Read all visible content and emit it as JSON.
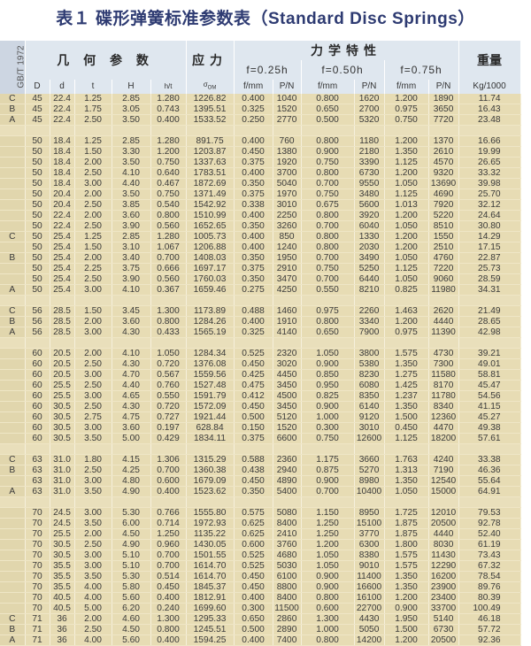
{
  "title": "表１ 碟形弹簧标准参数表（Standard Disc Springs）",
  "header": {
    "standard": "GB/T 1972",
    "geometry": "几 何 参 数",
    "stress": "应力",
    "mechanics": "力学特性",
    "weight": "重量",
    "f025": "f=0.25h",
    "f050": "f=0.50h",
    "f075": "f=0.75h",
    "columns": {
      "D": "D",
      "d": "d",
      "t": "t",
      "H": "H",
      "ht": "h/t",
      "sigma": "σ",
      "sigma_sub": "OM",
      "f1": "f/mm",
      "p1": "P/N",
      "f2": "f/mm",
      "p2": "P/N",
      "f3": "f/mm",
      "p3": "P/N",
      "kg": "Kg/1000"
    }
  },
  "colors": {
    "title": "#2e3b72",
    "header_bg": "#dfe7ef",
    "row_bg": "#e7dcb4"
  },
  "groups": [
    [
      [
        "C",
        "45",
        "22.4",
        "1.25",
        "2.85",
        "1.280",
        "1226.82",
        "0.400",
        "1040",
        "0.800",
        "1620",
        "1.200",
        "1890",
        "11.74"
      ],
      [
        "B",
        "45",
        "22.4",
        "1.75",
        "3.05",
        "0.743",
        "1395.51",
        "0.325",
        "1520",
        "0.650",
        "2700",
        "0.975",
        "3650",
        "16.43"
      ],
      [
        "A",
        "45",
        "22.4",
        "2.50",
        "3.50",
        "0.400",
        "1533.52",
        "0.250",
        "2770",
        "0.500",
        "5320",
        "0.750",
        "7720",
        "23.48"
      ]
    ],
    [
      [
        "",
        "50",
        "18.4",
        "1.25",
        "2.85",
        "1.280",
        "891.75",
        "0.400",
        "760",
        "0.800",
        "1180",
        "1.200",
        "1370",
        "16.66"
      ],
      [
        "",
        "50",
        "18.4",
        "1.50",
        "3.30",
        "1.200",
        "1203.87",
        "0.450",
        "1380",
        "0.900",
        "2180",
        "1.350",
        "2610",
        "19.99"
      ],
      [
        "",
        "50",
        "18.4",
        "2.00",
        "3.50",
        "0.750",
        "1337.63",
        "0.375",
        "1920",
        "0.750",
        "3390",
        "1.125",
        "4570",
        "26.65"
      ],
      [
        "",
        "50",
        "18.4",
        "2.50",
        "4.10",
        "0.640",
        "1783.51",
        "0.400",
        "3700",
        "0.800",
        "6730",
        "1.200",
        "9320",
        "33.32"
      ],
      [
        "",
        "50",
        "18.4",
        "3.00",
        "4.40",
        "0.467",
        "1872.69",
        "0.350",
        "5040",
        "0.700",
        "9550",
        "1.050",
        "13690",
        "39.98"
      ],
      [
        "",
        "50",
        "20.4",
        "2.00",
        "3.50",
        "0.750",
        "1371.49",
        "0.375",
        "1970",
        "0.750",
        "3480",
        "1.125",
        "4690",
        "25.70"
      ],
      [
        "",
        "50",
        "20.4",
        "2.50",
        "3.85",
        "0.540",
        "1542.92",
        "0.338",
        "3010",
        "0.675",
        "5600",
        "1.013",
        "7920",
        "32.12"
      ],
      [
        "",
        "50",
        "22.4",
        "2.00",
        "3.60",
        "0.800",
        "1510.99",
        "0.400",
        "2250",
        "0.800",
        "3920",
        "1.200",
        "5220",
        "24.64"
      ],
      [
        "",
        "50",
        "22.4",
        "2.50",
        "3.90",
        "0.560",
        "1652.65",
        "0.350",
        "3260",
        "0.700",
        "6040",
        "1.050",
        "8510",
        "30.80"
      ],
      [
        "C",
        "50",
        "25.4",
        "1.25",
        "2.85",
        "1.280",
        "1005.73",
        "0.400",
        "850",
        "0.800",
        "1330",
        "1.200",
        "1550",
        "14.29"
      ],
      [
        "",
        "50",
        "25.4",
        "1.50",
        "3.10",
        "1.067",
        "1206.88",
        "0.400",
        "1240",
        "0.800",
        "2030",
        "1.200",
        "2510",
        "17.15"
      ],
      [
        "B",
        "50",
        "25.4",
        "2.00",
        "3.40",
        "0.700",
        "1408.03",
        "0.350",
        "1950",
        "0.700",
        "3490",
        "1.050",
        "4760",
        "22.87"
      ],
      [
        "",
        "50",
        "25.4",
        "2.25",
        "3.75",
        "0.666",
        "1697.17",
        "0.375",
        "2910",
        "0.750",
        "5250",
        "1.125",
        "7220",
        "25.73"
      ],
      [
        "",
        "50",
        "25.4",
        "2.50",
        "3.90",
        "0.560",
        "1760.03",
        "0.350",
        "3470",
        "0.700",
        "6440",
        "1.050",
        "9060",
        "28.59"
      ],
      [
        "A",
        "50",
        "25.4",
        "3.00",
        "4.10",
        "0.367",
        "1659.46",
        "0.275",
        "4250",
        "0.550",
        "8210",
        "0.825",
        "11980",
        "34.31"
      ]
    ],
    [
      [
        "C",
        "56",
        "28.5",
        "1.50",
        "3.45",
        "1.300",
        "1173.89",
        "0.488",
        "1460",
        "0.975",
        "2260",
        "1.463",
        "2620",
        "21.49"
      ],
      [
        "B",
        "56",
        "28.5",
        "2.00",
        "3.60",
        "0.800",
        "1284.26",
        "0.400",
        "1910",
        "0.800",
        "3340",
        "1.200",
        "4440",
        "28.65"
      ],
      [
        "A",
        "56",
        "28.5",
        "3.00",
        "4.30",
        "0.433",
        "1565.19",
        "0.325",
        "4140",
        "0.650",
        "7900",
        "0.975",
        "11390",
        "42.98"
      ]
    ],
    [
      [
        "",
        "60",
        "20.5",
        "2.00",
        "4.10",
        "1.050",
        "1284.34",
        "0.525",
        "2320",
        "1.050",
        "3800",
        "1.575",
        "4730",
        "39.21"
      ],
      [
        "",
        "60",
        "20.5",
        "2.50",
        "4.30",
        "0.720",
        "1376.08",
        "0.450",
        "3020",
        "0.900",
        "5380",
        "1.350",
        "7300",
        "49.01"
      ],
      [
        "",
        "60",
        "20.5",
        "3.00",
        "4.70",
        "0.567",
        "1559.56",
        "0.425",
        "4450",
        "0.850",
        "8230",
        "1.275",
        "11580",
        "58.81"
      ],
      [
        "",
        "60",
        "25.5",
        "2.50",
        "4.40",
        "0.760",
        "1527.48",
        "0.475",
        "3450",
        "0.950",
        "6080",
        "1.425",
        "8170",
        "45.47"
      ],
      [
        "",
        "60",
        "25.5",
        "3.00",
        "4.65",
        "0.550",
        "1591.79",
        "0.412",
        "4500",
        "0.825",
        "8350",
        "1.237",
        "11780",
        "54.56"
      ],
      [
        "",
        "60",
        "30.5",
        "2.50",
        "4.30",
        "0.720",
        "1572.09",
        "0.450",
        "3450",
        "0.900",
        "6140",
        "1.350",
        "8340",
        "41.15"
      ],
      [
        "",
        "60",
        "30.5",
        "2.75",
        "4.75",
        "0.727",
        "1921.44",
        "0.500",
        "5120",
        "1.000",
        "9120",
        "1.500",
        "12360",
        "45.27"
      ],
      [
        "",
        "60",
        "30.5",
        "3.00",
        "3.60",
        "0.197",
        "628.84",
        "0.150",
        "1520",
        "0.300",
        "3010",
        "0.450",
        "4470",
        "49.38"
      ],
      [
        "",
        "60",
        "30.5",
        "3.50",
        "5.00",
        "0.429",
        "1834.11",
        "0.375",
        "6600",
        "0.750",
        "12600",
        "1.125",
        "18200",
        "57.61"
      ]
    ],
    [
      [
        "C",
        "63",
        "31.0",
        "1.80",
        "4.15",
        "1.306",
        "1315.29",
        "0.588",
        "2360",
        "1.175",
        "3660",
        "1.763",
        "4240",
        "33.38"
      ],
      [
        "B",
        "63",
        "31.0",
        "2.50",
        "4.25",
        "0.700",
        "1360.38",
        "0.438",
        "2940",
        "0.875",
        "5270",
        "1.313",
        "7190",
        "46.36"
      ],
      [
        "",
        "63",
        "31.0",
        "3.00",
        "4.80",
        "0.600",
        "1679.09",
        "0.450",
        "4890",
        "0.900",
        "8980",
        "1.350",
        "12540",
        "55.64"
      ],
      [
        "A",
        "63",
        "31.0",
        "3.50",
        "4.90",
        "0.400",
        "1523.62",
        "0.350",
        "5400",
        "0.700",
        "10400",
        "1.050",
        "15000",
        "64.91"
      ]
    ],
    [
      [
        "",
        "70",
        "24.5",
        "3.00",
        "5.30",
        "0.766",
        "1555.80",
        "0.575",
        "5080",
        "1.150",
        "8950",
        "1.725",
        "12010",
        "79.53"
      ],
      [
        "",
        "70",
        "24.5",
        "3.50",
        "6.00",
        "0.714",
        "1972.93",
        "0.625",
        "8400",
        "1.250",
        "15100",
        "1.875",
        "20500",
        "92.78"
      ],
      [
        "",
        "70",
        "25.5",
        "2.00",
        "4.50",
        "1.250",
        "1135.22",
        "0.625",
        "2410",
        "1.250",
        "3770",
        "1.875",
        "4440",
        "52.40"
      ],
      [
        "",
        "70",
        "30.5",
        "2.50",
        "4.90",
        "0.960",
        "1430.05",
        "0.600",
        "3760",
        "1.200",
        "6300",
        "1.800",
        "8030",
        "61.19"
      ],
      [
        "",
        "70",
        "30.5",
        "3.00",
        "5.10",
        "0.700",
        "1501.55",
        "0.525",
        "4680",
        "1.050",
        "8380",
        "1.575",
        "11430",
        "73.43"
      ],
      [
        "",
        "70",
        "35.5",
        "3.00",
        "5.10",
        "0.700",
        "1614.70",
        "0.525",
        "5030",
        "1.050",
        "9010",
        "1.575",
        "12290",
        "67.32"
      ],
      [
        "",
        "70",
        "35.5",
        "3.50",
        "5.30",
        "0.514",
        "1614.70",
        "0.450",
        "6100",
        "0.900",
        "11400",
        "1.350",
        "16200",
        "78.54"
      ],
      [
        "",
        "70",
        "35.5",
        "4.00",
        "5.80",
        "0.450",
        "1845.37",
        "0.450",
        "8800",
        "0.900",
        "16600",
        "1.350",
        "23900",
        "89.76"
      ],
      [
        "",
        "70",
        "40.5",
        "4.00",
        "5.60",
        "0.400",
        "1812.91",
        "0.400",
        "8400",
        "0.800",
        "16100",
        "1.200",
        "23400",
        "80.39"
      ],
      [
        "",
        "70",
        "40.5",
        "5.00",
        "6.20",
        "0.240",
        "1699.60",
        "0.300",
        "11500",
        "0.600",
        "22700",
        "0.900",
        "33700",
        "100.49"
      ],
      [
        "C",
        "71",
        "36",
        "2.00",
        "4.60",
        "1.300",
        "1295.33",
        "0.650",
        "2860",
        "1.300",
        "4430",
        "1.950",
        "5140",
        "46.18"
      ],
      [
        "B",
        "71",
        "36",
        "2.50",
        "4.50",
        "0.800",
        "1245.51",
        "0.500",
        "2890",
        "1.000",
        "5050",
        "1.500",
        "6730",
        "57.72"
      ],
      [
        "A",
        "71",
        "36",
        "4.00",
        "5.60",
        "0.400",
        "1594.25",
        "0.400",
        "7400",
        "0.800",
        "14200",
        "1.200",
        "20500",
        "92.36"
      ]
    ]
  ]
}
